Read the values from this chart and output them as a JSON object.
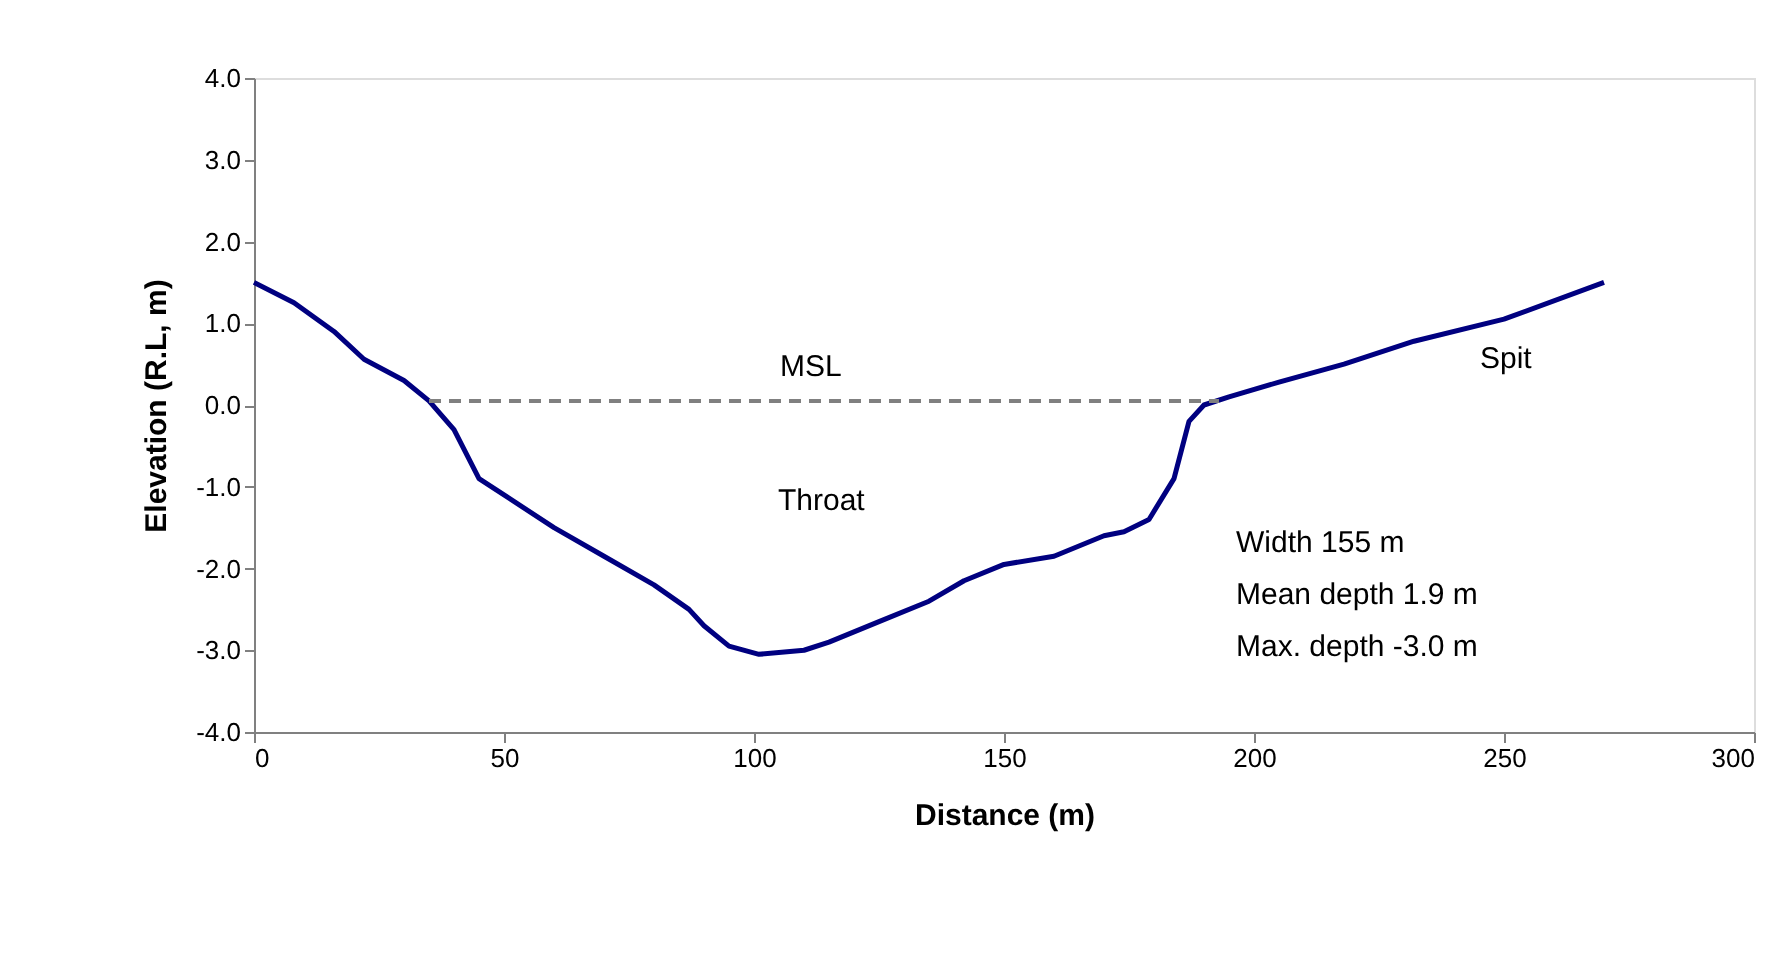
{
  "chart_data": {
    "type": "line",
    "xlabel": "Distance (m)",
    "ylabel": "Elevation (R.L, m)",
    "xlim": [
      0,
      300
    ],
    "xticks": [
      0,
      50,
      100,
      150,
      200,
      250,
      300
    ],
    "ylim": [
      -4,
      4
    ],
    "yticks": [
      {
        "value": -4,
        "label": "-4.0"
      },
      {
        "value": -3,
        "label": "-3.0"
      },
      {
        "value": -2,
        "label": "-2.0"
      },
      {
        "value": -1,
        "label": "-1.0"
      },
      {
        "value": 0,
        "label": "0.0"
      },
      {
        "value": 1,
        "label": "1.0"
      },
      {
        "value": 2,
        "label": "2.0"
      },
      {
        "value": 3,
        "label": "3.0"
      },
      {
        "value": 4,
        "label": "4.0"
      }
    ],
    "grid": false,
    "marker": "none",
    "series": [
      {
        "color": "#000080",
        "line_style": "solid",
        "x": [
          0,
          8,
          16,
          22,
          30,
          35,
          40,
          45,
          50,
          60,
          70,
          80,
          87,
          90,
          95,
          101,
          110,
          115,
          125,
          135,
          142,
          150,
          160,
          170,
          174,
          179,
          184,
          187,
          190,
          195,
          205,
          218,
          232,
          250,
          270
        ],
        "values": [
          1.5,
          1.25,
          0.9,
          0.56,
          0.3,
          0.05,
          -0.3,
          -0.9,
          -1.1,
          -1.5,
          -1.85,
          -2.2,
          -2.5,
          -2.7,
          -2.95,
          -3.05,
          -3.0,
          -2.9,
          -2.65,
          -2.4,
          -2.15,
          -1.95,
          -1.85,
          -1.6,
          -1.55,
          -1.4,
          -0.9,
          -0.2,
          0.0,
          0.1,
          0.28,
          0.5,
          0.78,
          1.05,
          1.5
        ]
      },
      {
        "color": "#808080",
        "line_style": "dashed",
        "x": [
          35,
          193
        ],
        "values": [
          0.05,
          0.05
        ]
      }
    ],
    "annotations": [
      "MSL",
      "Throat",
      "Spit",
      "Width 155 m",
      "Mean depth 1.9 m",
      "Max. depth -3.0 m"
    ]
  }
}
